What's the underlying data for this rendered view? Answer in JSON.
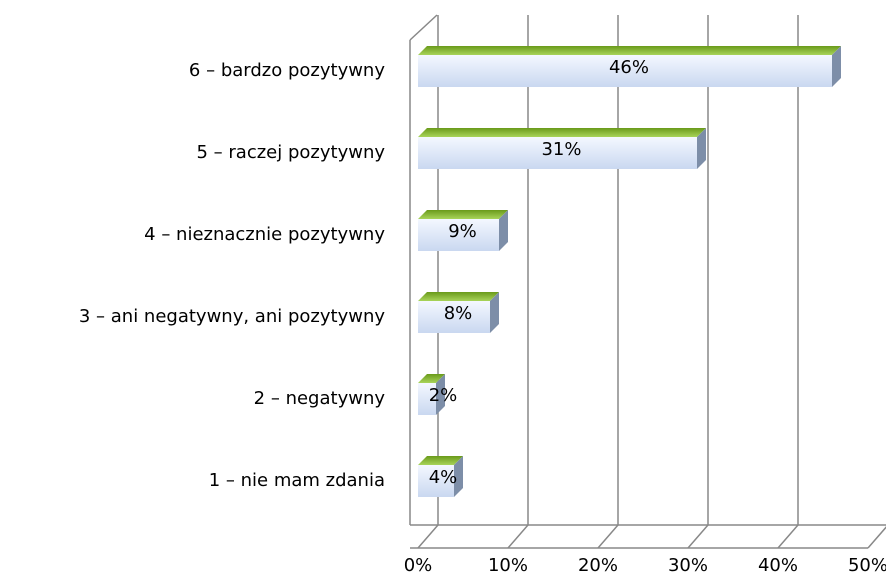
{
  "chart_data": {
    "type": "bar",
    "orientation": "horizontal",
    "categories": [
      "6 – bardzo pozytywny",
      "5 – raczej pozytywny",
      "4 – nieznacznie pozytywny",
      "3 – ani negatywny, ani pozytywny",
      "2 – negatywny",
      "1 – nie mam zdania"
    ],
    "values": [
      46,
      31,
      9,
      8,
      2,
      4
    ],
    "value_labels": [
      "46%",
      "31%",
      "9%",
      "8%",
      "2%",
      "4%"
    ],
    "color": "#8dc63f",
    "xlim": [
      0,
      50
    ],
    "xticks": [
      {
        "value": 0,
        "label": "0%"
      },
      {
        "value": 10,
        "label": "10%"
      },
      {
        "value": 20,
        "label": "20%"
      },
      {
        "value": 30,
        "label": "30%"
      },
      {
        "value": 40,
        "label": "40%"
      },
      {
        "value": 50,
        "label": "50%"
      }
    ],
    "grid": true
  }
}
